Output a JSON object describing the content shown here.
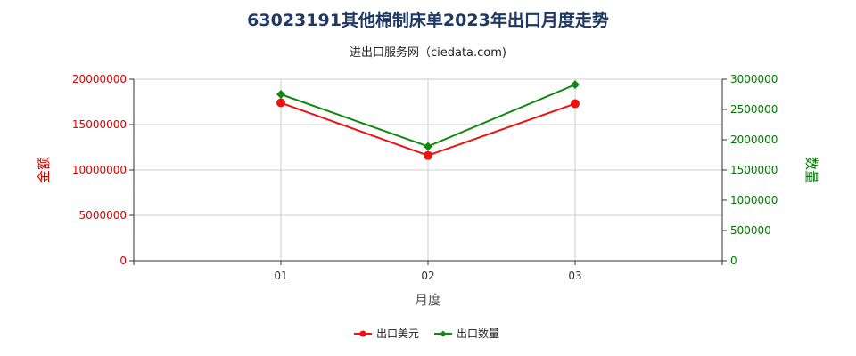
{
  "title": "63023191其他棉制床单2023年出口月度走势",
  "subtitle": "进出口服务网（ciedata.com)",
  "colors": {
    "amount": "#ee1111",
    "quantity": "#118811",
    "grid": "#cccccc",
    "axis": "#333333"
  },
  "chart_data": {
    "type": "line",
    "categories": [
      "01",
      "02",
      "03"
    ],
    "xlabel": "月度",
    "y_left": {
      "label": "金额",
      "lim": [
        0,
        20000000
      ],
      "ticks": [
        0,
        5000000,
        10000000,
        15000000,
        20000000
      ]
    },
    "y_right": {
      "label": "数量",
      "lim": [
        0,
        3000000
      ],
      "ticks": [
        0,
        500000,
        1000000,
        1500000,
        2000000,
        2500000,
        3000000
      ]
    },
    "series": [
      {
        "name": "出口美元",
        "axis": "left",
        "color": "#ee1111",
        "marker": "circle",
        "values": [
          17400000,
          11600000,
          17300000
        ]
      },
      {
        "name": "出口数量",
        "axis": "right",
        "color": "#118811",
        "marker": "diamond",
        "values": [
          2750000,
          1890000,
          2910000
        ]
      }
    ],
    "grid": true,
    "legend": "bottom-center"
  }
}
